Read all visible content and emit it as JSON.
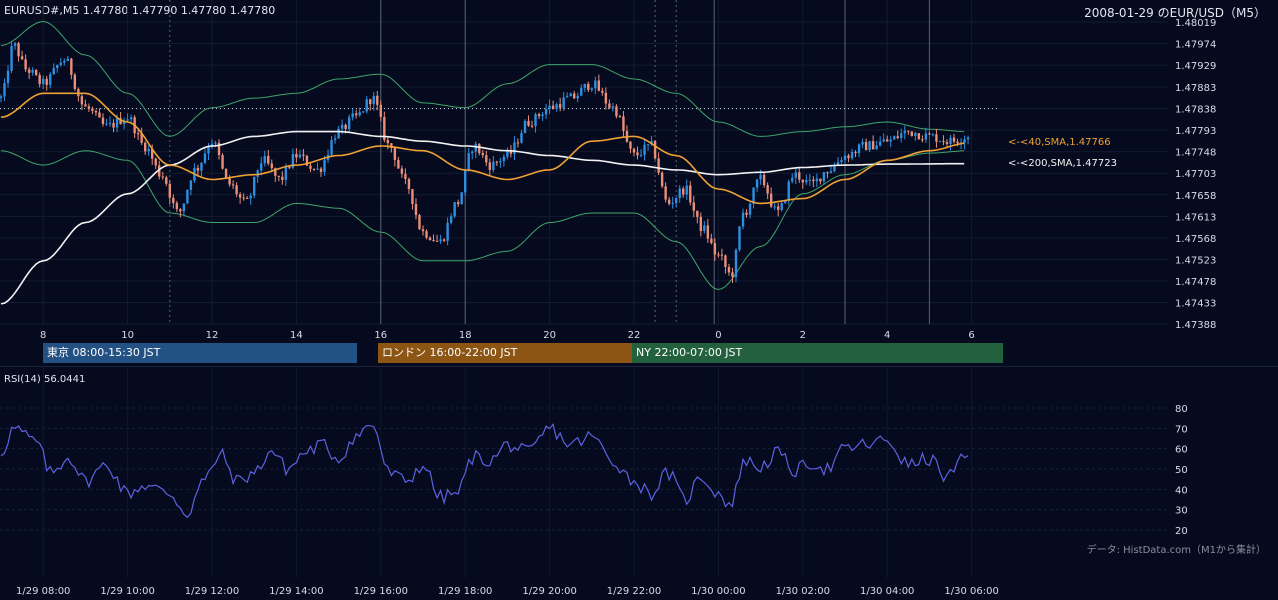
{
  "header": {
    "symbol_info": "EURUSD#,M5 1.47780 1.47790 1.47780 1.47780",
    "date_title": "2008-01-29 のEUR/USD（M5）"
  },
  "colors": {
    "background": "#050a1e",
    "bull": "#2e8ee0",
    "bear": "#ec8f78",
    "sma40": "#f0a134",
    "sma200": "#f2f2f2",
    "bollinger": "#3fa56b",
    "rsi": "#5b63e0",
    "tokyo": "#245184",
    "london": "#8c5514",
    "ny": "#23603e"
  },
  "sessions": [
    {
      "label": "東京 08:00-15:30 JST"
    },
    {
      "label": "ロンドン 16:00-22:00 JST"
    },
    {
      "label": "NY 22:00-07:00 JST"
    }
  ],
  "price_axis": {
    "ticks": [
      "1.48019",
      "1.47974",
      "1.47929",
      "1.47883",
      "1.47838",
      "1.47793",
      "1.47748",
      "1.47703",
      "1.47658",
      "1.47613",
      "1.47568",
      "1.47523",
      "1.47478",
      "1.47433",
      "1.47388"
    ]
  },
  "hour_axis": {
    "labels": [
      "8",
      "10",
      "12",
      "14",
      "16",
      "18",
      "20",
      "22",
      "0",
      "2",
      "4",
      "6"
    ]
  },
  "time_axis": {
    "labels": [
      "1/29 08:00",
      "1/29 10:00",
      "1/29 12:00",
      "1/29 14:00",
      "1/29 16:00",
      "1/29 18:00",
      "1/29 20:00",
      "1/29 22:00",
      "1/30 00:00",
      "1/30 02:00",
      "1/30 04:00",
      "1/30 06:00"
    ]
  },
  "sma_labels": {
    "sma40": "<-<40,SMA,1.47766",
    "sma200": "<-<200,SMA,1.47723"
  },
  "rsi": {
    "title": "RSI(14) 56.0441",
    "ticks": [
      "80",
      "70",
      "60",
      "50",
      "40",
      "30",
      "20"
    ]
  },
  "source_note": "データ: HistData.com（M1から集計）",
  "chart_data": [
    {
      "type": "candlestick",
      "title": "2008-01-29 のEUR/USD（M5）",
      "x_range": [
        "1/29 07:00",
        "1/30 06:45"
      ],
      "ylim": [
        1.47388,
        1.48019
      ],
      "last": {
        "open": 1.4778,
        "high": 1.4779,
        "low": 1.4778,
        "close": 1.4778
      },
      "dotted_reference_level": 1.47838,
      "series_keypoints": {
        "close": [
          [
            7.0,
            1.4786
          ],
          [
            7.3,
            1.4797
          ],
          [
            7.6,
            1.4792
          ],
          [
            8.0,
            1.4789
          ],
          [
            8.5,
            1.4794
          ],
          [
            9.0,
            1.4784
          ],
          [
            9.5,
            1.478
          ],
          [
            10.0,
            1.4782
          ],
          [
            10.4,
            1.4776
          ],
          [
            10.8,
            1.477
          ],
          [
            11.2,
            1.4762
          ],
          [
            11.6,
            1.4771
          ],
          [
            12.0,
            1.4777
          ],
          [
            12.4,
            1.4768
          ],
          [
            12.8,
            1.4764
          ],
          [
            13.2,
            1.4773
          ],
          [
            13.6,
            1.4769
          ],
          [
            14.0,
            1.4774
          ],
          [
            14.5,
            1.4771
          ],
          [
            15.0,
            1.4779
          ],
          [
            15.4,
            1.4782
          ],
          [
            15.8,
            1.4786
          ],
          [
            16.2,
            1.4776
          ],
          [
            16.6,
            1.4768
          ],
          [
            17.0,
            1.4758
          ],
          [
            17.4,
            1.4756
          ],
          [
            17.8,
            1.4764
          ],
          [
            18.2,
            1.4776
          ],
          [
            18.6,
            1.4772
          ],
          [
            19.0,
            1.4774
          ],
          [
            19.5,
            1.4781
          ],
          [
            20.0,
            1.4784
          ],
          [
            20.5,
            1.4786
          ],
          [
            21.0,
            1.4789
          ],
          [
            21.5,
            1.4784
          ],
          [
            22.0,
            1.4774
          ],
          [
            22.4,
            1.4776
          ],
          [
            22.8,
            1.4764
          ],
          [
            23.2,
            1.4767
          ],
          [
            23.6,
            1.4759
          ],
          [
            24.0,
            1.4753
          ],
          [
            24.3,
            1.4749
          ],
          [
            24.6,
            1.4762
          ],
          [
            25.0,
            1.4769
          ],
          [
            25.4,
            1.4762
          ],
          [
            25.8,
            1.477
          ],
          [
            26.2,
            1.4768
          ],
          [
            26.6,
            1.4771
          ],
          [
            27.0,
            1.4774
          ],
          [
            27.5,
            1.4776
          ],
          [
            28.0,
            1.4777
          ],
          [
            28.5,
            1.4779
          ],
          [
            29.0,
            1.4778
          ],
          [
            29.5,
            1.4777
          ],
          [
            29.9,
            1.4778
          ]
        ],
        "sma40": [
          [
            7.0,
            1.4782
          ],
          [
            8.0,
            1.4787
          ],
          [
            9.0,
            1.4787
          ],
          [
            10.0,
            1.4781
          ],
          [
            11.0,
            1.4772
          ],
          [
            12.0,
            1.4769
          ],
          [
            13.0,
            1.477
          ],
          [
            14.0,
            1.4772
          ],
          [
            15.0,
            1.4774
          ],
          [
            16.0,
            1.4776
          ],
          [
            17.0,
            1.4775
          ],
          [
            18.0,
            1.4771
          ],
          [
            19.0,
            1.4769
          ],
          [
            20.0,
            1.4771
          ],
          [
            21.0,
            1.4777
          ],
          [
            22.0,
            1.4778
          ],
          [
            23.0,
            1.4774
          ],
          [
            24.0,
            1.4767
          ],
          [
            25.0,
            1.4764
          ],
          [
            26.0,
            1.4765
          ],
          [
            27.0,
            1.4769
          ],
          [
            28.0,
            1.4773
          ],
          [
            29.0,
            1.4775
          ],
          [
            29.9,
            1.47766
          ]
        ],
        "sma200": [
          [
            7.0,
            1.4743
          ],
          [
            8.0,
            1.4752
          ],
          [
            9.0,
            1.476
          ],
          [
            10.0,
            1.4766
          ],
          [
            11.0,
            1.4772
          ],
          [
            12.0,
            1.4776
          ],
          [
            13.0,
            1.4778
          ],
          [
            14.0,
            1.4779
          ],
          [
            15.0,
            1.4779
          ],
          [
            16.0,
            1.4778
          ],
          [
            17.0,
            1.4777
          ],
          [
            18.0,
            1.4776
          ],
          [
            19.0,
            1.4775
          ],
          [
            20.0,
            1.4774
          ],
          [
            21.0,
            1.4773
          ],
          [
            22.0,
            1.4772
          ],
          [
            23.0,
            1.4771
          ],
          [
            24.0,
            1.477
          ],
          [
            25.0,
            1.47705
          ],
          [
            26.0,
            1.47715
          ],
          [
            27.0,
            1.4772
          ],
          [
            28.0,
            1.47722
          ],
          [
            29.9,
            1.47723
          ]
        ],
        "bollinger_upper": [
          [
            7.0,
            1.4797
          ],
          [
            8.0,
            1.4802
          ],
          [
            9.0,
            1.4795
          ],
          [
            10.0,
            1.4787
          ],
          [
            11.0,
            1.4778
          ],
          [
            12.0,
            1.4784
          ],
          [
            13.0,
            1.4786
          ],
          [
            14.0,
            1.4787
          ],
          [
            15.0,
            1.479
          ],
          [
            16.0,
            1.4791
          ],
          [
            17.0,
            1.4785
          ],
          [
            18.0,
            1.4784
          ],
          [
            19.0,
            1.4789
          ],
          [
            20.0,
            1.4793
          ],
          [
            21.0,
            1.4793
          ],
          [
            22.0,
            1.479
          ],
          [
            23.0,
            1.4787
          ],
          [
            24.0,
            1.4781
          ],
          [
            25.0,
            1.4778
          ],
          [
            26.0,
            1.4779
          ],
          [
            27.0,
            1.478
          ],
          [
            28.0,
            1.4781
          ],
          [
            29.0,
            1.47795
          ],
          [
            29.9,
            1.4779
          ]
        ],
        "bollinger_lower": [
          [
            7.0,
            1.4775
          ],
          [
            8.0,
            1.4772
          ],
          [
            9.0,
            1.4775
          ],
          [
            10.0,
            1.4773
          ],
          [
            11.0,
            1.4762
          ],
          [
            12.0,
            1.476
          ],
          [
            13.0,
            1.476
          ],
          [
            14.0,
            1.4764
          ],
          [
            15.0,
            1.4763
          ],
          [
            16.0,
            1.4758
          ],
          [
            17.0,
            1.4752
          ],
          [
            18.0,
            1.4752
          ],
          [
            19.0,
            1.4754
          ],
          [
            20.0,
            1.476
          ],
          [
            21.0,
            1.4762
          ],
          [
            22.0,
            1.4762
          ],
          [
            23.0,
            1.4756
          ],
          [
            24.0,
            1.4746
          ],
          [
            25.0,
            1.4755
          ],
          [
            26.0,
            1.4766
          ],
          [
            27.0,
            1.477
          ],
          [
            28.0,
            1.4773
          ],
          [
            29.0,
            1.47745
          ],
          [
            29.9,
            1.4775
          ]
        ]
      }
    },
    {
      "type": "line",
      "title": "RSI(14) 56.0441",
      "ylim": [
        15,
        85
      ],
      "series_keypoints": {
        "rsi": [
          [
            7.0,
            58
          ],
          [
            7.3,
            70
          ],
          [
            7.8,
            64
          ],
          [
            8.2,
            48
          ],
          [
            8.6,
            56
          ],
          [
            9.0,
            44
          ],
          [
            9.5,
            52
          ],
          [
            10.0,
            38
          ],
          [
            10.4,
            42
          ],
          [
            11.0,
            38
          ],
          [
            11.4,
            28
          ],
          [
            11.8,
            44
          ],
          [
            12.2,
            57
          ],
          [
            12.6,
            44
          ],
          [
            13.0,
            48
          ],
          [
            13.4,
            59
          ],
          [
            13.8,
            50
          ],
          [
            14.2,
            58
          ],
          [
            14.6,
            62
          ],
          [
            15.0,
            55
          ],
          [
            15.4,
            66
          ],
          [
            15.8,
            72
          ],
          [
            16.2,
            48
          ],
          [
            16.6,
            44
          ],
          [
            17.0,
            52
          ],
          [
            17.4,
            36
          ],
          [
            17.8,
            38
          ],
          [
            18.2,
            56
          ],
          [
            18.6,
            54
          ],
          [
            19.0,
            62
          ],
          [
            19.5,
            58
          ],
          [
            20.0,
            70
          ],
          [
            20.5,
            62
          ],
          [
            21.0,
            66
          ],
          [
            21.5,
            54
          ],
          [
            22.0,
            44
          ],
          [
            22.4,
            38
          ],
          [
            22.8,
            48
          ],
          [
            23.2,
            35
          ],
          [
            23.6,
            46
          ],
          [
            24.0,
            38
          ],
          [
            24.3,
            32
          ],
          [
            24.6,
            54
          ],
          [
            25.0,
            51
          ],
          [
            25.4,
            58
          ],
          [
            25.8,
            49
          ],
          [
            26.2,
            53
          ],
          [
            26.6,
            50
          ],
          [
            27.0,
            60
          ],
          [
            27.5,
            62
          ],
          [
            28.0,
            64
          ],
          [
            28.5,
            52
          ],
          [
            29.0,
            55
          ],
          [
            29.4,
            46
          ],
          [
            29.9,
            56.0441
          ]
        ]
      }
    }
  ]
}
